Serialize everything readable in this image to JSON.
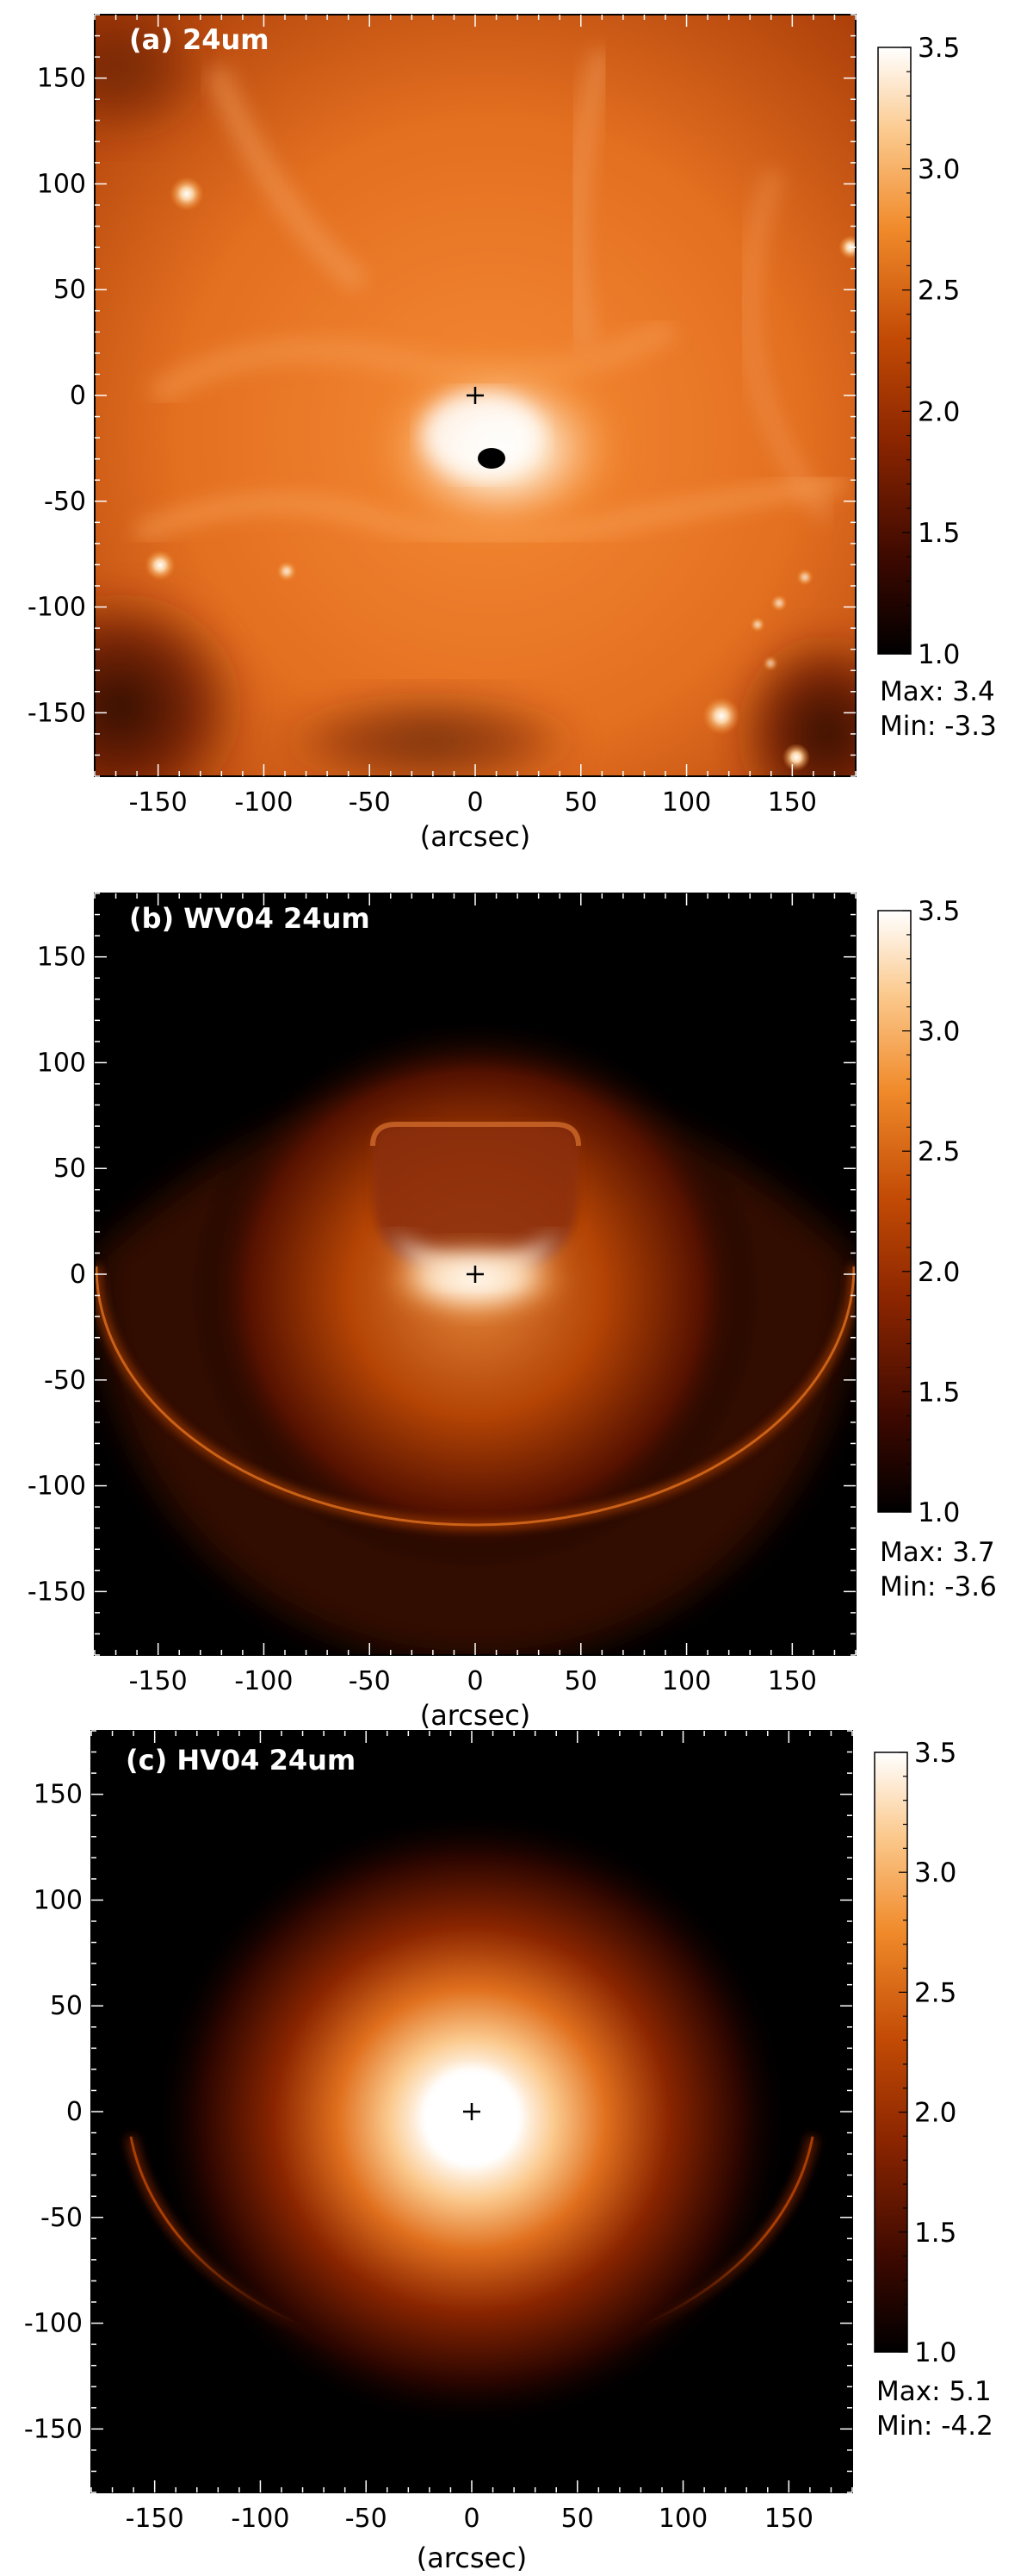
{
  "chart_data": [
    {
      "type": "heatmap",
      "title": "(a) 24um",
      "xlabel": "(arcsec)",
      "ylabel": "",
      "xlim": [
        -180,
        180
      ],
      "ylim": [
        -180,
        180
      ],
      "xticks": [
        "-150",
        "-100",
        "-50",
        "0",
        "50",
        "100",
        "150"
      ],
      "yticks": [
        "150",
        "100",
        "50",
        "0",
        "-50",
        "-100",
        "-150"
      ],
      "colorbar": {
        "range": [
          1.0,
          3.5
        ],
        "ticks": [
          "3.5",
          "3.0",
          "2.5",
          "2.0",
          "1.5",
          "1.0"
        ]
      },
      "max_label": "Max: 3.4",
      "min_label": "Min: -3.3",
      "center_marker": [
        0,
        0
      ]
    },
    {
      "type": "heatmap",
      "title": "(b) WV04 24um",
      "xlabel": "(arcsec)",
      "ylabel": "",
      "xlim": [
        -180,
        180
      ],
      "ylim": [
        -180,
        180
      ],
      "xticks": [
        "-150",
        "-100",
        "-50",
        "0",
        "50",
        "100",
        "150"
      ],
      "yticks": [
        "150",
        "100",
        "50",
        "0",
        "-50",
        "-100",
        "-150"
      ],
      "colorbar": {
        "range": [
          1.0,
          3.5
        ],
        "ticks": [
          "3.5",
          "3.0",
          "2.5",
          "2.0",
          "1.5",
          "1.0"
        ]
      },
      "max_label": "Max: 3.7",
      "min_label": "Min: -3.6",
      "center_marker": [
        0,
        0
      ]
    },
    {
      "type": "heatmap",
      "title": "(c) HV04 24um",
      "xlabel": "(arcsec)",
      "ylabel": "",
      "xlim": [
        -180,
        180
      ],
      "ylim": [
        -180,
        180
      ],
      "xticks": [
        "-150",
        "-100",
        "-50",
        "0",
        "50",
        "100",
        "150"
      ],
      "yticks": [
        "150",
        "100",
        "50",
        "0",
        "-50",
        "-100",
        "-150"
      ],
      "colorbar": {
        "range": [
          1.0,
          3.5
        ],
        "ticks": [
          "3.5",
          "3.0",
          "2.5",
          "2.0",
          "1.5",
          "1.0"
        ]
      },
      "max_label": "Max: 5.1",
      "min_label": "Min: -4.2",
      "center_marker": [
        0,
        0
      ]
    }
  ],
  "colors": {
    "colormap": [
      "#000000",
      "#3a0800",
      "#8a2500",
      "#c24a05",
      "#f08a2a",
      "#fbc98d",
      "#ffffff"
    ]
  }
}
